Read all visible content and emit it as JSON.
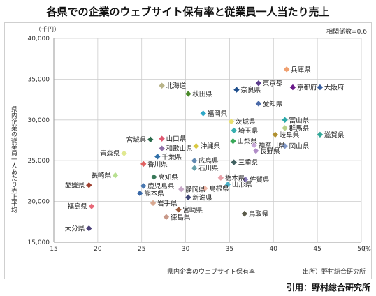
{
  "title": "各県での企業のウェブサイト保有率と従業員一人当たり売上",
  "citation": "引用：野村総合研究所",
  "chart_data": {
    "type": "scatter",
    "xlabel": "県内企業のウェブサイト保有率",
    "x_unit": "(%)",
    "ylabel": "県内企業の従業員一人あたり売上平均",
    "y_unit": "（千円）",
    "xlim": [
      15,
      50
    ],
    "ylim": [
      15000,
      40000
    ],
    "x_ticks": [
      15,
      20,
      25,
      30,
      35,
      40,
      45,
      50
    ],
    "y_ticks": [
      15000,
      20000,
      25000,
      30000,
      35000,
      40000
    ],
    "x_tick_labels": [
      "15",
      "20",
      "25",
      "30",
      "35",
      "40",
      "45",
      "50"
    ],
    "y_tick_labels": [
      "15,000",
      "20,000",
      "25,000",
      "30,000",
      "35,000",
      "40,000"
    ],
    "grid": true,
    "correlation_label": "相関係数=0.6",
    "source": "出所）野村総合研究所",
    "points": [
      {
        "label": "兵庫県",
        "x": 41.5,
        "y": 36200,
        "color": "#f0a070"
      },
      {
        "label": "東京都",
        "x": 38.3,
        "y": 34500,
        "color": "#5b3c8c"
      },
      {
        "label": "京都府",
        "x": 42.2,
        "y": 34000,
        "color": "#6a1a8a"
      },
      {
        "label": "大阪府",
        "x": 45.3,
        "y": 34000,
        "color": "#3a5fa0"
      },
      {
        "label": "北海道",
        "x": 27.3,
        "y": 34200,
        "color": "#b9b48a"
      },
      {
        "label": "奈良県",
        "x": 35.8,
        "y": 33700,
        "color": "#1e4e8c"
      },
      {
        "label": "秋田県",
        "x": 30.3,
        "y": 33200,
        "color": "#4a8a2a"
      },
      {
        "label": "愛知県",
        "x": 38.3,
        "y": 32000,
        "color": "#4a6aa8"
      },
      {
        "label": "福岡県",
        "x": 32.0,
        "y": 30800,
        "color": "#2fa8c8"
      },
      {
        "label": "茨城県",
        "x": 35.2,
        "y": 29800,
        "color": "#e8e070"
      },
      {
        "label": "富山県",
        "x": 41.3,
        "y": 30000,
        "color": "#2aa8a8"
      },
      {
        "label": "群馬県",
        "x": 41.3,
        "y": 29000,
        "color": "#b8d088"
      },
      {
        "label": "埼玉県",
        "x": 35.5,
        "y": 28700,
        "color": "#38b0b0"
      },
      {
        "label": "岐阜県",
        "x": 40.2,
        "y": 28200,
        "color": "#b09030"
      },
      {
        "label": "滋賀県",
        "x": 45.3,
        "y": 28200,
        "color": "#30a898"
      },
      {
        "label": "宮城県",
        "x": 26.0,
        "y": 27600,
        "color": "#2a6a4a"
      },
      {
        "label": "山口県",
        "x": 27.3,
        "y": 27700,
        "color": "#e05870"
      },
      {
        "label": "山梨県",
        "x": 35.4,
        "y": 27400,
        "color": "#38a858"
      },
      {
        "label": "神奈川県",
        "x": 37.8,
        "y": 26900,
        "color": "#c8a8d8"
      },
      {
        "label": "岡山県",
        "x": 41.3,
        "y": 26800,
        "color": "#8098c8"
      },
      {
        "label": "沖縄県",
        "x": 31.2,
        "y": 26800,
        "color": "#d8c840"
      },
      {
        "label": "和歌山県",
        "x": 27.3,
        "y": 26500,
        "color": "#9070a8"
      },
      {
        "label": "青森県",
        "x": 23.0,
        "y": 25900,
        "color": "#e0e890"
      },
      {
        "label": "長野県",
        "x": 38.0,
        "y": 26200,
        "color": "#b08cc8"
      },
      {
        "label": "千葉県",
        "x": 26.8,
        "y": 25500,
        "color": "#3070a8"
      },
      {
        "label": "広島県",
        "x": 31.0,
        "y": 25000,
        "color": "#6088b0"
      },
      {
        "label": "三重県",
        "x": 35.5,
        "y": 24800,
        "color": "#406060"
      },
      {
        "label": "香川県",
        "x": 25.2,
        "y": 24600,
        "color": "#e06060"
      },
      {
        "label": "石川県",
        "x": 31.0,
        "y": 24100,
        "color": "#68a0a8"
      },
      {
        "label": "長崎県",
        "x": 22.0,
        "y": 23200,
        "color": "#b8e090"
      },
      {
        "label": "高知県",
        "x": 26.4,
        "y": 23000,
        "color": "#387858"
      },
      {
        "label": "栃木県",
        "x": 34.0,
        "y": 22900,
        "color": "#e8a0a8"
      },
      {
        "label": "佐賀県",
        "x": 36.8,
        "y": 22700,
        "color": "#8878b8"
      },
      {
        "label": "愛媛県",
        "x": 19.0,
        "y": 22000,
        "color": "#a04030"
      },
      {
        "label": "鹿児島県",
        "x": 25.2,
        "y": 21900,
        "color": "#4a78b0"
      },
      {
        "label": "山形県",
        "x": 34.8,
        "y": 22100,
        "color": "#48b0c8"
      },
      {
        "label": "静岡県",
        "x": 29.5,
        "y": 21500,
        "color": "#c8a8c8"
      },
      {
        "label": "島根県",
        "x": 32.2,
        "y": 21600,
        "color": "#f0b8a8"
      },
      {
        "label": "熊本県",
        "x": 24.8,
        "y": 21000,
        "color": "#3868a8"
      },
      {
        "label": "新潟県",
        "x": 30.3,
        "y": 20500,
        "color": "#404878"
      },
      {
        "label": "福島県",
        "x": 19.3,
        "y": 19400,
        "color": "#e86878"
      },
      {
        "label": "岩手県",
        "x": 26.3,
        "y": 19800,
        "color": "#d8a890"
      },
      {
        "label": "宮崎県",
        "x": 29.2,
        "y": 19000,
        "color": "#9a5a3a"
      },
      {
        "label": "徳島県",
        "x": 27.8,
        "y": 18100,
        "color": "#c89888"
      },
      {
        "label": "鳥取県",
        "x": 36.7,
        "y": 18500,
        "color": "#5a5a4a"
      },
      {
        "label": "大分県",
        "x": 19.0,
        "y": 16700,
        "color": "#4a4078"
      }
    ]
  }
}
